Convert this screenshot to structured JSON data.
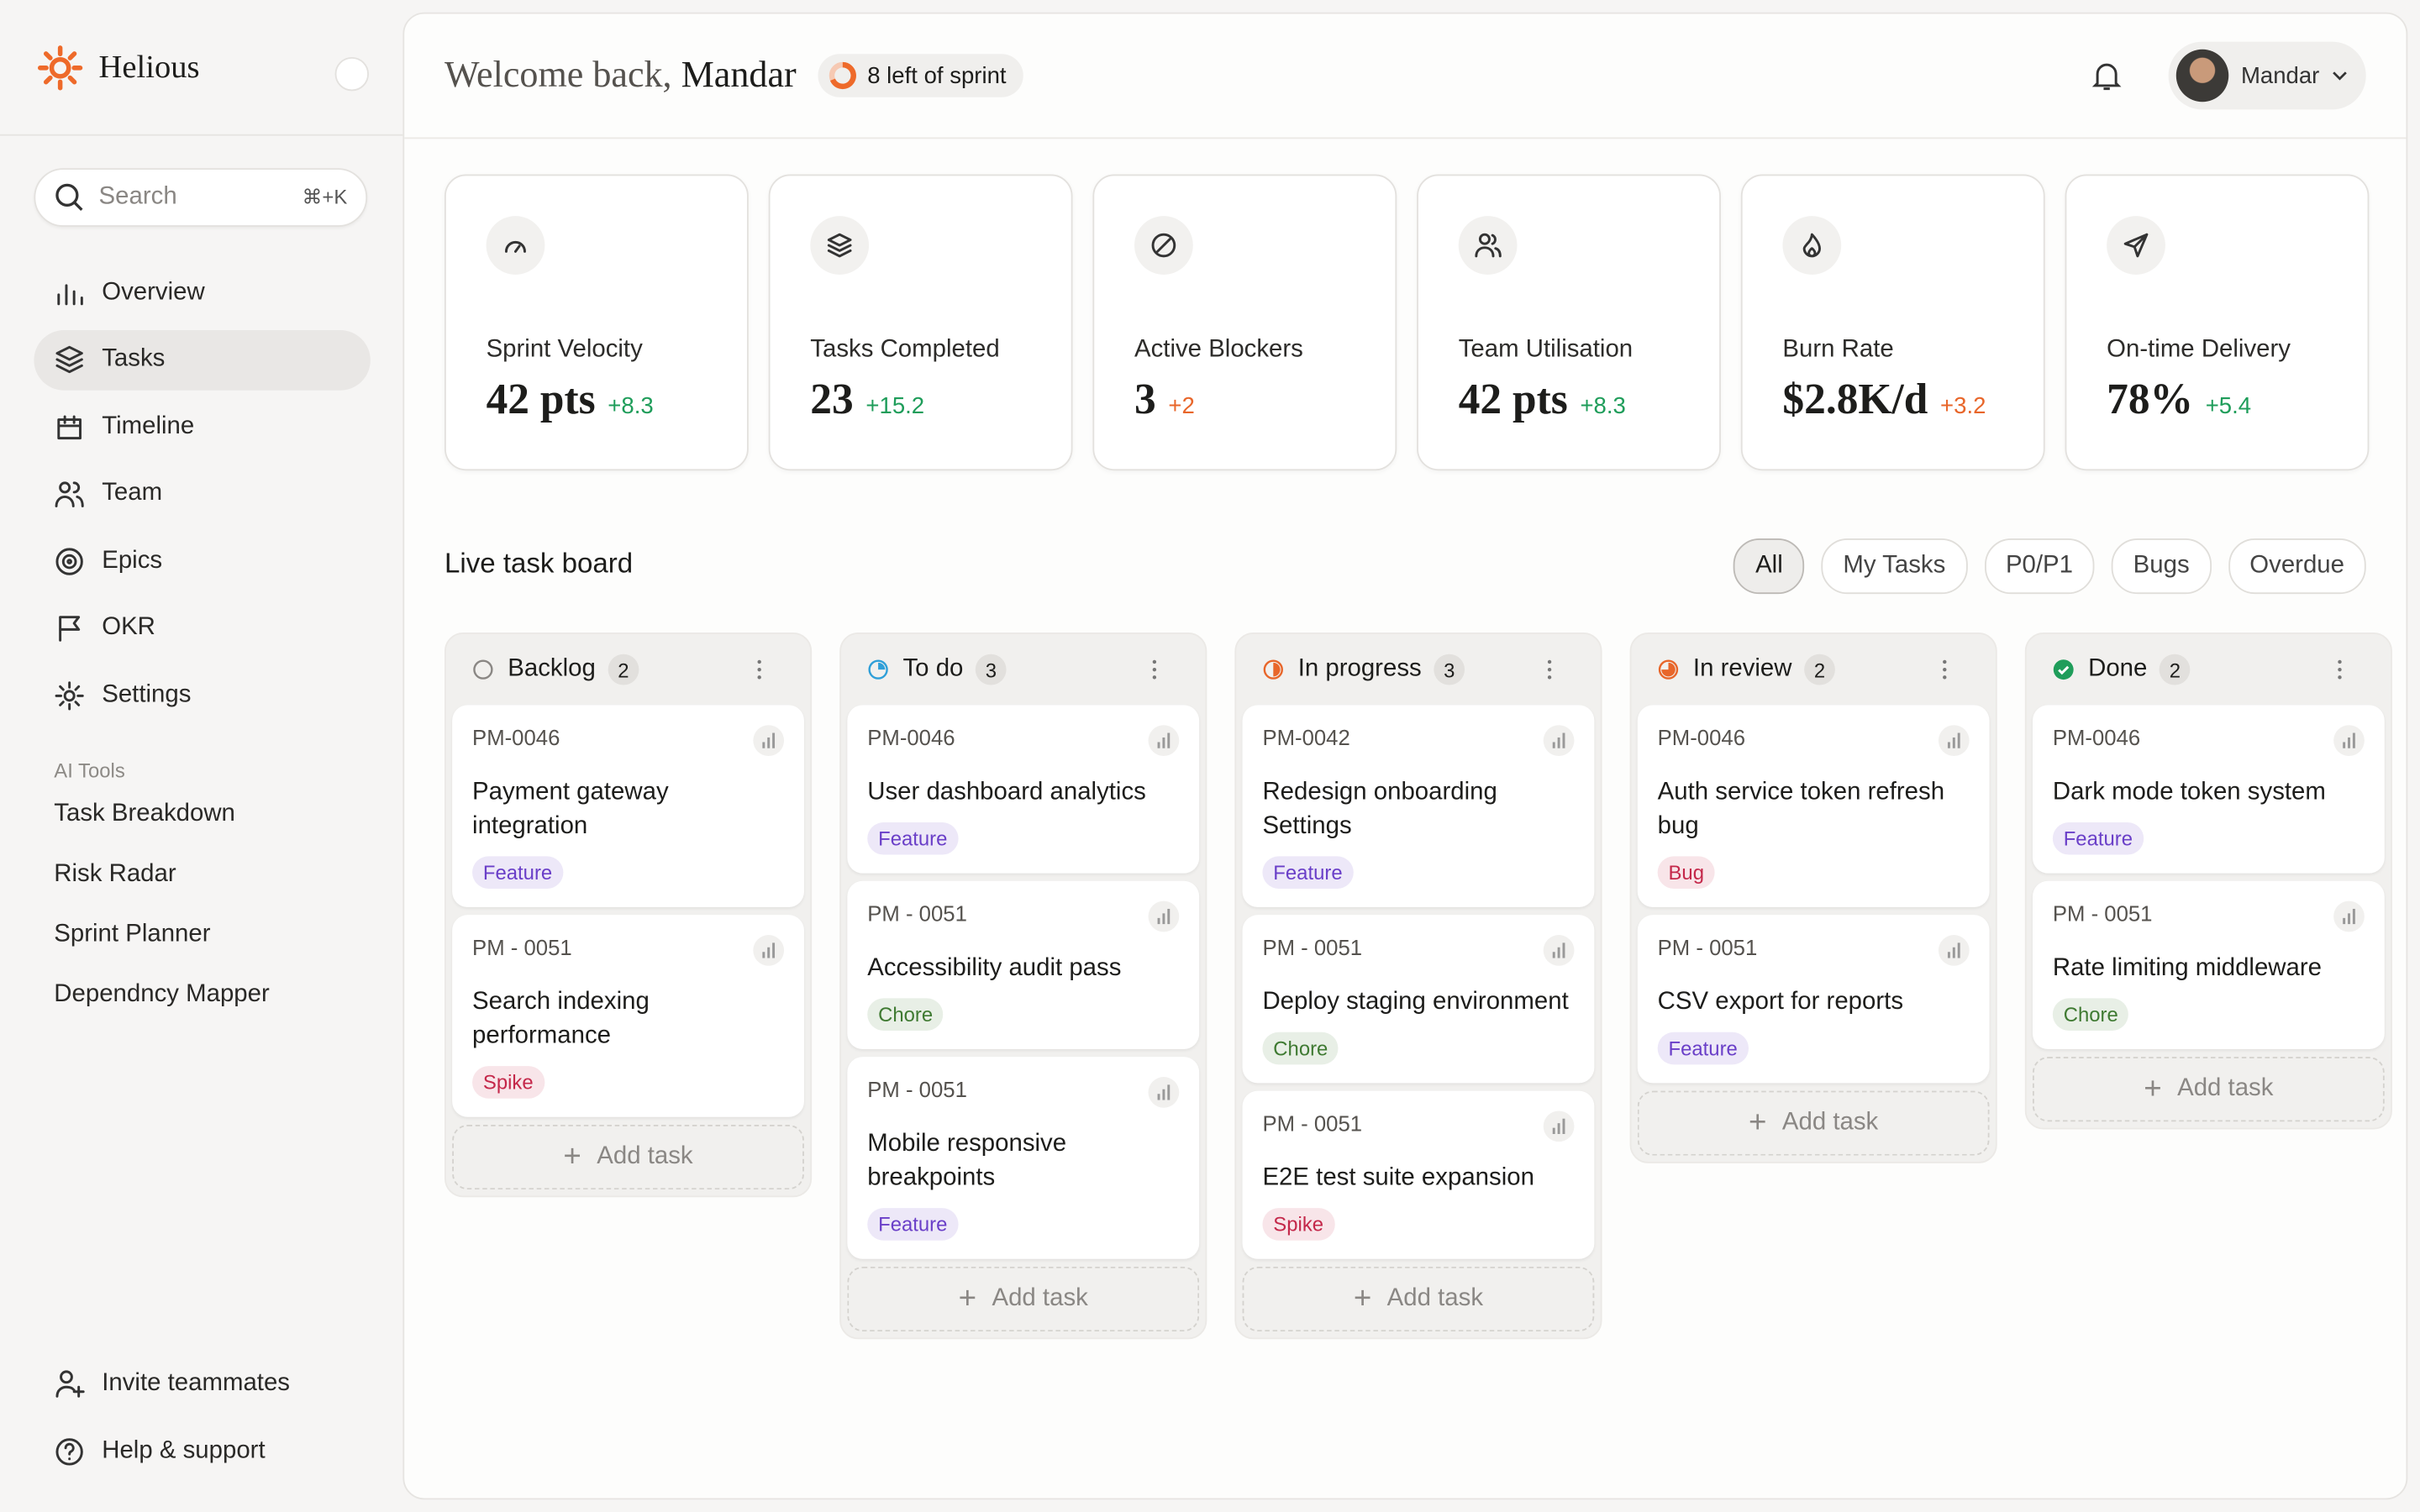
{
  "sidebar": {
    "brand": "Helious",
    "search": {
      "placeholder": "Search",
      "shortcut": "⌘+K"
    },
    "nav": [
      {
        "label": "Overview",
        "active": false
      },
      {
        "label": "Tasks",
        "active": true
      },
      {
        "label": "Timeline",
        "active": false
      },
      {
        "label": "Team",
        "active": false
      },
      {
        "label": "Epics",
        "active": false
      },
      {
        "label": "OKR",
        "active": false
      },
      {
        "label": "Settings",
        "active": false
      }
    ],
    "ai_tools": {
      "title": "AI Tools",
      "items": [
        "Task Breakdown",
        "Risk Radar",
        "Sprint Planner",
        "Dependncy Mapper"
      ]
    },
    "footer": [
      "Invite teammates",
      "Help & support"
    ]
  },
  "header": {
    "greeting": "Welcome back,",
    "user": "Mandar",
    "sprint": "8 left of sprint",
    "account": "Mandar"
  },
  "stats": [
    {
      "label": "Sprint Velocity",
      "value": "42 pts",
      "delta": "+8.3",
      "delta_color": "#1f9d5a"
    },
    {
      "label": "Tasks Completed",
      "value": "23",
      "delta": "+15.2",
      "delta_color": "#1f9d5a"
    },
    {
      "label": "Active Blockers",
      "value": "3",
      "delta": "+2",
      "delta_color": "#e8662a"
    },
    {
      "label": "Team Utilisation",
      "value": "42 pts",
      "delta": "+8.3",
      "delta_color": "#1f9d5a"
    },
    {
      "label": "Burn Rate",
      "value": "$2.8K/d",
      "delta": "+3.2",
      "delta_color": "#e8662a"
    },
    {
      "label": "On-time Delivery",
      "value": "78%",
      "delta": "+5.4",
      "delta_color": "#1f9d5a"
    }
  ],
  "board": {
    "title": "Live task board",
    "filters": [
      {
        "label": "All",
        "active": true
      },
      {
        "label": "My Tasks",
        "active": false
      },
      {
        "label": "P0/P1",
        "active": false
      },
      {
        "label": "Bugs",
        "active": false
      },
      {
        "label": "Overdue",
        "active": false
      }
    ],
    "columns": [
      {
        "name": "Backlog",
        "count": 2,
        "status_color": "#8a8784",
        "progress": 0,
        "add": "Add task",
        "cards": [
          {
            "id": "PM-0046",
            "title": "Payment gateway integration",
            "tag": "Feature",
            "tag_color": "#6a3fc8"
          },
          {
            "id": "PM - 0051",
            "title": "Search indexing performance",
            "tag": "Spike",
            "tag_color": "#c4284a"
          }
        ]
      },
      {
        "name": "To do",
        "count": 3,
        "status_color": "#2f9fd8",
        "progress": 0.25,
        "add": "Add task",
        "cards": [
          {
            "id": "PM-0046",
            "title": "User dashboard analytics",
            "tag": "Feature",
            "tag_color": "#6a3fc8"
          },
          {
            "id": "PM - 0051",
            "title": "Accessibility audit pass",
            "tag": "Chore",
            "tag_color": "#3f7a32"
          },
          {
            "id": "PM - 0051",
            "title": "Mobile responsive breakpoints",
            "tag": "Feature",
            "tag_color": "#6a3fc8"
          }
        ]
      },
      {
        "name": "In progress",
        "count": 3,
        "status_color": "#e8662a",
        "progress": 0.5,
        "add": "Add task",
        "cards": [
          {
            "id": "PM-0042",
            "title": "Redesign onboarding Settings",
            "tag": "Feature",
            "tag_color": "#6a3fc8"
          },
          {
            "id": "PM - 0051",
            "title": "Deploy staging environment",
            "tag": "Chore",
            "tag_color": "#3f7a32"
          },
          {
            "id": "PM - 0051",
            "title": "E2E test suite expansion",
            "tag": "Spike",
            "tag_color": "#c4284a"
          }
        ]
      },
      {
        "name": "In review",
        "count": 2,
        "status_color": "#e8662a",
        "progress": 0.75,
        "add": "Add task",
        "cards": [
          {
            "id": "PM-0046",
            "title": "Auth service token refresh bug",
            "tag": "Bug",
            "tag_color": "#c4284a"
          },
          {
            "id": "PM - 0051",
            "title": "CSV export for reports",
            "tag": "Feature",
            "tag_color": "#6a3fc8"
          }
        ]
      },
      {
        "name": "Done",
        "count": 2,
        "status_color": "#1f9d5a",
        "progress": 1,
        "add": "Add task",
        "cards": [
          {
            "id": "PM-0046",
            "title": "Dark mode token system",
            "tag": "Feature",
            "tag_color": "#6a3fc8"
          },
          {
            "id": "PM - 0051",
            "title": "Rate limiting middleware",
            "tag": "Chore",
            "tag_color": "#3f7a32"
          }
        ]
      }
    ]
  }
}
